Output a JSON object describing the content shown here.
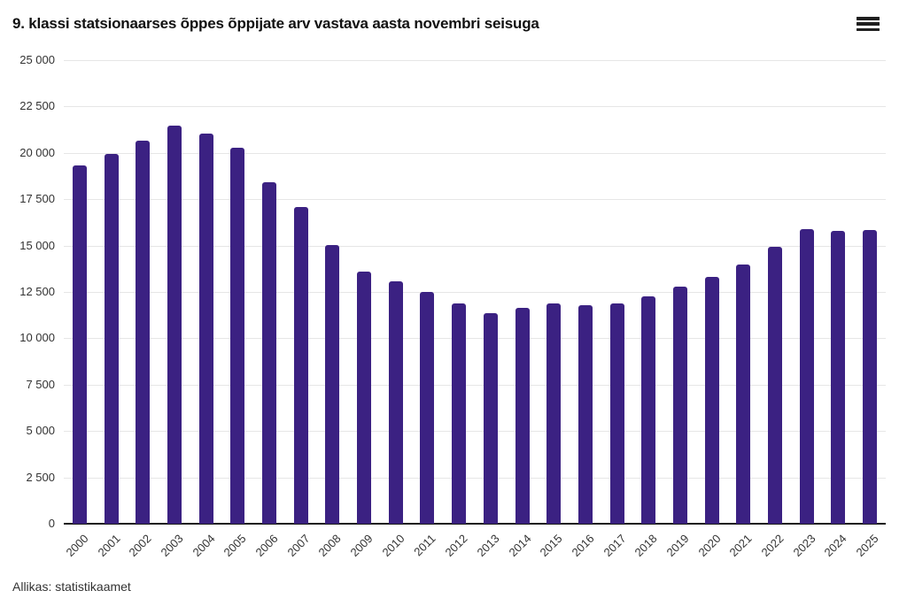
{
  "header": {
    "title": "9. klassi statsionaarses õppes õppijate arv vastava aasta novembri seisuga",
    "menu_icon": "hamburger-menu-icon"
  },
  "source_note": "Allikas: statistikaamet",
  "colors": {
    "bar": "#3b2182",
    "grid": "#e6e6e6",
    "axis": "#1a1a1a",
    "tick_label": "#333333",
    "title": "#111111",
    "background": "#ffffff"
  },
  "chart_data": {
    "type": "bar",
    "title": "9. klassi statsionaarses õppes õppijate arv vastava aasta novembri seisuga",
    "xlabel": "",
    "ylabel": "",
    "ylim": [
      0,
      25000
    ],
    "ytick_interval": 2500,
    "ytick_values": [
      0,
      2500,
      5000,
      7500,
      10000,
      12500,
      15000,
      17500,
      20000,
      22500,
      25000
    ],
    "ytick_labels": [
      "0",
      "2 500",
      "5 000",
      "7 500",
      "10 000",
      "12 500",
      "15 000",
      "17 500",
      "20 000",
      "22 500",
      "25 000"
    ],
    "grid": "horizontal-only",
    "legend": "none",
    "bar_color": "#3b2182",
    "categories": [
      "2000",
      "2001",
      "2002",
      "2003",
      "2004",
      "2005",
      "2006",
      "2007",
      "2008",
      "2009",
      "2010",
      "2011",
      "2012",
      "2013",
      "2014",
      "2015",
      "2016",
      "2017",
      "2018",
      "2019",
      "2020",
      "2021",
      "2022",
      "2023",
      "2024",
      "2025"
    ],
    "values": [
      19300,
      19950,
      20650,
      21450,
      21050,
      20300,
      18400,
      17100,
      15050,
      13600,
      13050,
      12500,
      11900,
      11350,
      11650,
      11900,
      11800,
      11900,
      12250,
      12800,
      13300,
      14000,
      14950,
      15900,
      15800,
      15850
    ],
    "source": "Allikas: statistikaamet"
  }
}
